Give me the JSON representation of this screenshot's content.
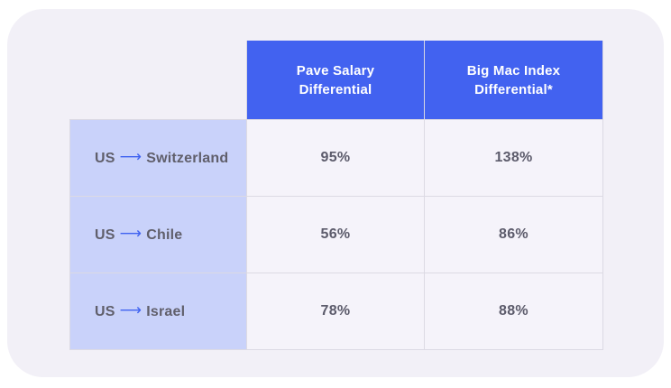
{
  "chart_data": {
    "type": "table",
    "title": "",
    "columns": [
      "Pave Salary Differential",
      "Big Mac Index Differential*"
    ],
    "rows": [
      {
        "from": "US",
        "to": "Switzerland",
        "values": [
          "95%",
          "138%"
        ]
      },
      {
        "from": "US",
        "to": "Chile",
        "values": [
          "56%",
          "86%"
        ]
      },
      {
        "from": "US",
        "to": "Israel",
        "values": [
          "78%",
          "88%"
        ]
      }
    ]
  },
  "icons": {
    "arrow_right": "⟶"
  },
  "colors": {
    "header_bg": "#4262f0",
    "header_text": "#ffffff",
    "row_label_bg": "#c9d2fa",
    "label_text": "#605f6b",
    "value_text": "#5c5b6b",
    "card_bg": "#f2f0f7",
    "grid_line": "#dcdae4",
    "arrow_blue": "#3f62f0"
  }
}
